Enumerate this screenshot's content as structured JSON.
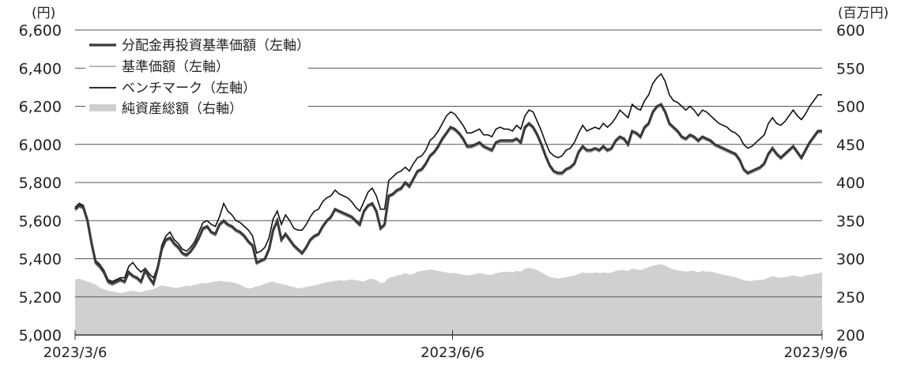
{
  "chart_data": {
    "type": "line",
    "left_unit": "(円)",
    "right_unit": "(百万円)",
    "left_ticks": [
      "6,600",
      "6,400",
      "6,200",
      "6,000",
      "5,800",
      "5,600",
      "5,400",
      "5,200",
      "5,000"
    ],
    "right_ticks": [
      "600",
      "550",
      "500",
      "450",
      "400",
      "350",
      "300",
      "250",
      "200"
    ],
    "left_range": [
      5000,
      6600
    ],
    "right_range": [
      200,
      600
    ],
    "x_labels": [
      "2023/3/6",
      "2023/6/6",
      "2023/9/6"
    ],
    "legend": [
      {
        "label": "分配金再投資基準価額（左軸）",
        "color": "#3a3a3a",
        "style": "thick"
      },
      {
        "label": "基準価額（左軸）",
        "color": "#9a9a9a",
        "style": "thin"
      },
      {
        "label": "ベンチマーク（左軸）",
        "color": "#111111",
        "style": "medium"
      },
      {
        "label": "純資産総額（右軸）",
        "color": "#cfcfcf",
        "style": "band"
      }
    ],
    "series": [
      {
        "name": "分配金再投資基準価額（左軸）",
        "axis": "left",
        "values": [
          5660,
          5680,
          5670,
          5600,
          5480,
          5380,
          5360,
          5330,
          5280,
          5270,
          5280,
          5290,
          5280,
          5330,
          5310,
          5300,
          5280,
          5340,
          5300,
          5270,
          5350,
          5450,
          5500,
          5510,
          5480,
          5460,
          5430,
          5420,
          5440,
          5470,
          5510,
          5560,
          5570,
          5540,
          5530,
          5580,
          5600,
          5580,
          5570,
          5550,
          5540,
          5520,
          5490,
          5470,
          5380,
          5390,
          5400,
          5450,
          5550,
          5600,
          5500,
          5530,
          5500,
          5470,
          5450,
          5430,
          5460,
          5500,
          5520,
          5530,
          5570,
          5600,
          5620,
          5660,
          5650,
          5640,
          5630,
          5620,
          5600,
          5580,
          5650,
          5680,
          5690,
          5650,
          5560,
          5580,
          5730,
          5740,
          5760,
          5770,
          5800,
          5780,
          5820,
          5860,
          5870,
          5900,
          5940,
          5960,
          5990,
          6030,
          6060,
          6090,
          6080,
          6060,
          6030,
          5990,
          5990,
          6000,
          6010,
          5990,
          5980,
          5970,
          6010,
          6020,
          6020,
          6020,
          6020,
          6030,
          6010,
          6090,
          6110,
          6090,
          6050,
          6000,
          5940,
          5890,
          5860,
          5850,
          5850,
          5870,
          5880,
          5900,
          5960,
          5990,
          5970,
          5970,
          5980,
          5970,
          5990,
          5970,
          5980,
          6020,
          6040,
          6030,
          6000,
          6070,
          6060,
          6040,
          6090,
          6110,
          6170,
          6200,
          6210,
          6170,
          6110,
          6090,
          6070,
          6040,
          6030,
          6050,
          6040,
          6020,
          6040,
          6030,
          6020,
          6000,
          5990,
          5980,
          5970,
          5960,
          5950,
          5920,
          5870,
          5850,
          5860,
          5870,
          5880,
          5900,
          5950,
          5980,
          5950,
          5930,
          5950,
          5970,
          5990,
          5960,
          5930,
          5970,
          6010,
          6040,
          6070,
          6070
        ]
      },
      {
        "name": "基準価額（左軸）",
        "axis": "left",
        "values": [
          5650,
          5670,
          5660,
          5590,
          5470,
          5370,
          5350,
          5320,
          5270,
          5260,
          5270,
          5280,
          5270,
          5320,
          5300,
          5290,
          5270,
          5330,
          5290,
          5260,
          5340,
          5440,
          5490,
          5500,
          5470,
          5450,
          5420,
          5410,
          5430,
          5460,
          5500,
          5550,
          5560,
          5530,
          5520,
          5570,
          5590,
          5570,
          5560,
          5540,
          5530,
          5510,
          5480,
          5460,
          5370,
          5380,
          5390,
          5440,
          5540,
          5590,
          5490,
          5520,
          5490,
          5460,
          5440,
          5420,
          5450,
          5490,
          5510,
          5520,
          5560,
          5590,
          5610,
          5650,
          5640,
          5630,
          5620,
          5610,
          5590,
          5570,
          5640,
          5670,
          5680,
          5640,
          5550,
          5570,
          5720,
          5730,
          5750,
          5760,
          5790,
          5770,
          5810,
          5850,
          5860,
          5890,
          5930,
          5950,
          5980,
          6020,
          6050,
          6080,
          6070,
          6050,
          6020,
          5980,
          5980,
          5990,
          6000,
          5980,
          5970,
          5960,
          6000,
          6010,
          6010,
          6010,
          6010,
          6020,
          6000,
          6080,
          6100,
          6080,
          6040,
          5990,
          5930,
          5880,
          5850,
          5840,
          5840,
          5860,
          5870,
          5890,
          5950,
          5980,
          5960,
          5960,
          5970,
          5960,
          5980,
          5960,
          5970,
          6010,
          6030,
          6020,
          5990,
          6060,
          6050,
          6030,
          6080,
          6100,
          6160,
          6190,
          6200,
          6160,
          6100,
          6080,
          6060,
          6030,
          6020,
          6040,
          6030,
          6010,
          6030,
          6020,
          6010,
          5990,
          5980,
          5970,
          5960,
          5950,
          5940,
          5910,
          5860,
          5840,
          5850,
          5860,
          5870,
          5890,
          5940,
          5970,
          5940,
          5920,
          5940,
          5960,
          5980,
          5950,
          5920,
          5960,
          6000,
          6030,
          6060,
          6060
        ]
      },
      {
        "name": "ベンチマーク（左軸）",
        "axis": "left",
        "values": [
          5670,
          5690,
          5680,
          5610,
          5490,
          5390,
          5370,
          5340,
          5290,
          5280,
          5290,
          5300,
          5300,
          5360,
          5380,
          5350,
          5330,
          5350,
          5320,
          5300,
          5360,
          5470,
          5520,
          5540,
          5500,
          5480,
          5450,
          5440,
          5460,
          5490,
          5540,
          5590,
          5600,
          5580,
          5570,
          5620,
          5690,
          5650,
          5630,
          5600,
          5590,
          5570,
          5550,
          5520,
          5430,
          5440,
          5460,
          5510,
          5610,
          5650,
          5580,
          5630,
          5600,
          5560,
          5550,
          5550,
          5580,
          5620,
          5650,
          5660,
          5700,
          5720,
          5730,
          5760,
          5740,
          5730,
          5720,
          5700,
          5670,
          5650,
          5700,
          5750,
          5770,
          5730,
          5660,
          5660,
          5810,
          5830,
          5850,
          5860,
          5880,
          5860,
          5900,
          5930,
          5940,
          5970,
          6020,
          6040,
          6070,
          6110,
          6150,
          6170,
          6160,
          6130,
          6100,
          6060,
          6060,
          6070,
          6080,
          6050,
          6050,
          6040,
          6080,
          6090,
          6080,
          6080,
          6070,
          6100,
          6080,
          6150,
          6180,
          6170,
          6120,
          6070,
          6010,
          5960,
          5940,
          5930,
          5940,
          5970,
          5980,
          6010,
          6060,
          6100,
          6070,
          6080,
          6090,
          6080,
          6110,
          6090,
          6110,
          6140,
          6180,
          6160,
          6140,
          6210,
          6190,
          6180,
          6230,
          6260,
          6320,
          6350,
          6370,
          6330,
          6260,
          6230,
          6220,
          6200,
          6180,
          6200,
          6180,
          6150,
          6180,
          6170,
          6150,
          6130,
          6110,
          6100,
          6090,
          6070,
          6060,
          6040,
          6000,
          5980,
          5990,
          6010,
          6030,
          6050,
          6110,
          6140,
          6110,
          6100,
          6120,
          6150,
          6180,
          6150,
          6130,
          6160,
          6200,
          6230,
          6260,
          6260
        ]
      },
      {
        "name": "純資産総額（右軸）",
        "axis": "right",
        "values": [
          273,
          274,
          272,
          270,
          268,
          266,
          262,
          260,
          258,
          257,
          256,
          255,
          256,
          257,
          258,
          257,
          256,
          258,
          259,
          260,
          263,
          265,
          264,
          263,
          262,
          262,
          263,
          265,
          264,
          266,
          267,
          268,
          268,
          269,
          270,
          271,
          270,
          270,
          269,
          268,
          266,
          263,
          261,
          262,
          264,
          265,
          267,
          269,
          270,
          268,
          267,
          266,
          264,
          263,
          261,
          262,
          263,
          264,
          265,
          266,
          268,
          269,
          270,
          271,
          272,
          271,
          272,
          273,
          272,
          271,
          270,
          273,
          274,
          272,
          268,
          269,
          275,
          276,
          278,
          279,
          281,
          279,
          280,
          283,
          284,
          285,
          286,
          285,
          284,
          283,
          282,
          281,
          281,
          280,
          279,
          278,
          279,
          280,
          281,
          280,
          279,
          279,
          281,
          282,
          283,
          283,
          282,
          284,
          283,
          287,
          288,
          287,
          285,
          282,
          279,
          276,
          275,
          274,
          275,
          276,
          277,
          278,
          280,
          282,
          281,
          281,
          282,
          281,
          282,
          281,
          282,
          284,
          285,
          285,
          284,
          287,
          286,
          285,
          287,
          289,
          291,
          292,
          293,
          291,
          288,
          286,
          285,
          284,
          283,
          284,
          284,
          282,
          284,
          283,
          283,
          282,
          280,
          279,
          278,
          277,
          276,
          274,
          272,
          271,
          271,
          272,
          272,
          273,
          275,
          277,
          276,
          275,
          276,
          277,
          278,
          277,
          276,
          278,
          279,
          280,
          281,
          282
        ]
      }
    ]
  }
}
